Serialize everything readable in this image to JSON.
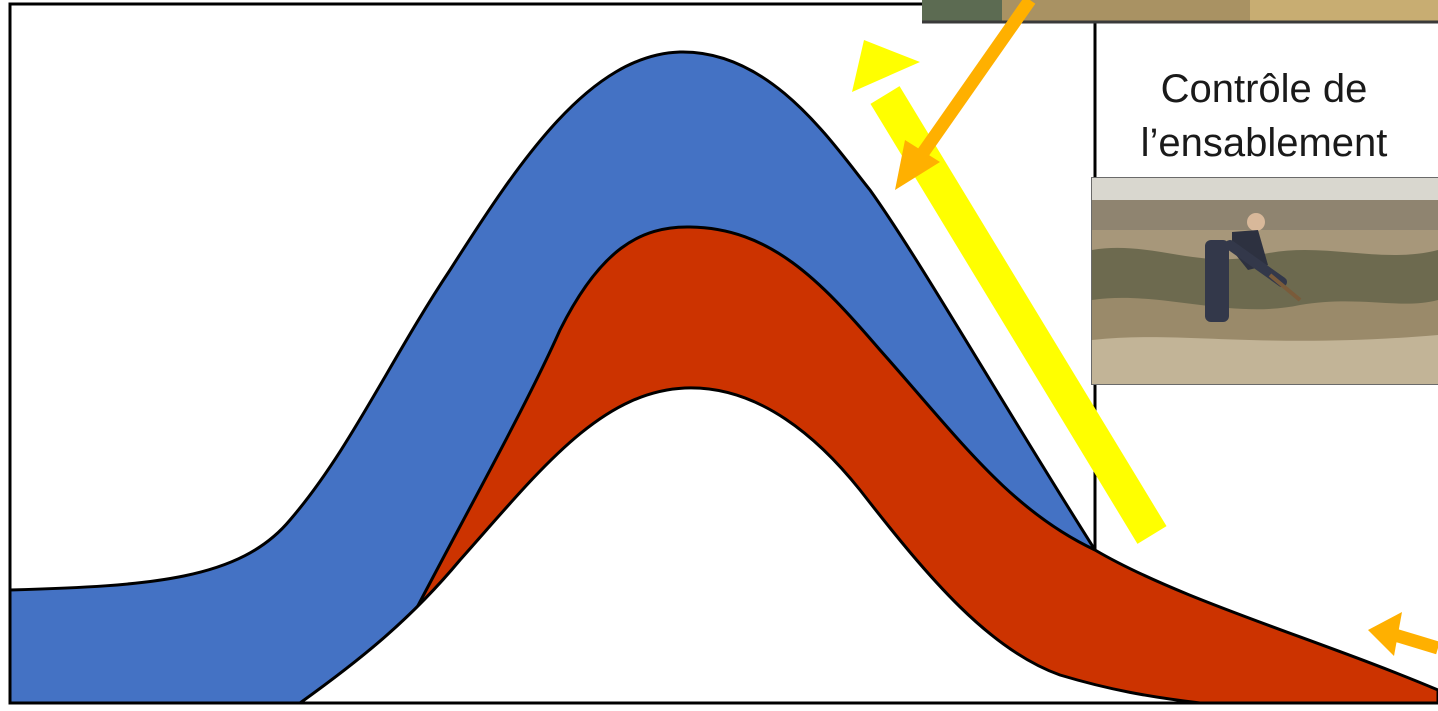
{
  "caption": {
    "line1": "Contrôle de",
    "line2": "l’ensablement"
  },
  "icons": {
    "yellow_arrow": "arrow-up-left-icon",
    "orange_arrow_diagonal": "arrow-down-left-icon",
    "orange_arrow_small": "arrow-left-icon"
  },
  "colors": {
    "outer_layer": "#4472C4",
    "inner_layer": "#CC3300",
    "yellow_arrow": "#FFFF00",
    "orange_arrow": "#FFB000",
    "outline": "#000000"
  }
}
